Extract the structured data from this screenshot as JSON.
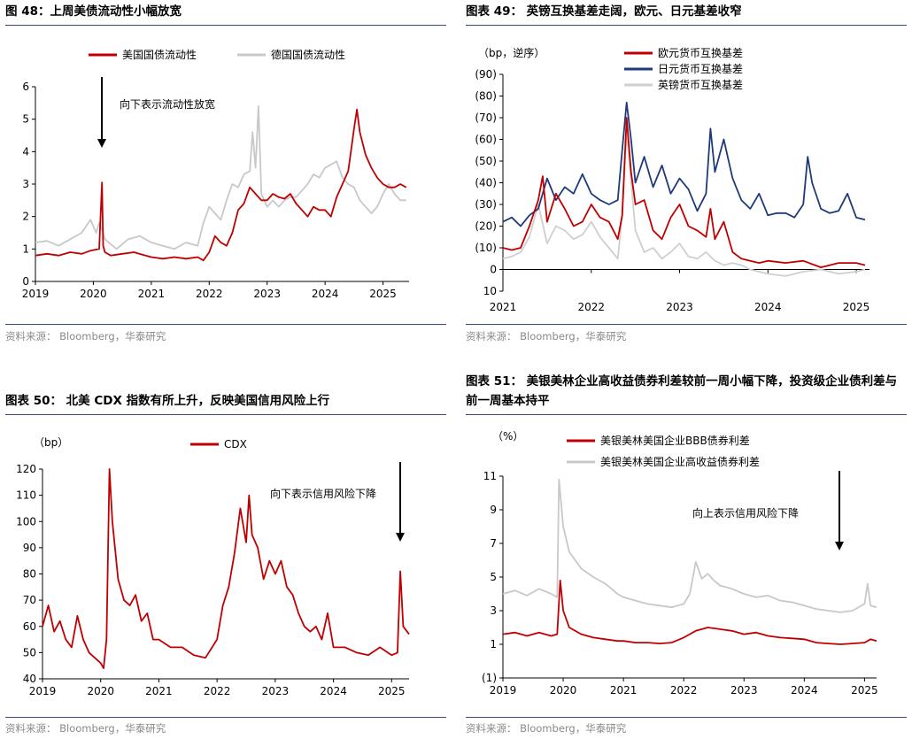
{
  "panels": [
    {
      "title": "图 48：上周美债流动性小幅放宽",
      "source": "资料来源：  Bloomberg，华泰研究",
      "chart_data": {
        "type": "line",
        "ylabel": "",
        "ylim": [
          0,
          6
        ],
        "yticks": [
          "0",
          "1",
          "2",
          "3",
          "4",
          "5",
          "6"
        ],
        "xlim": [
          2019,
          2025.45
        ],
        "xticks": [
          "2019",
          "2020",
          "2021",
          "2022",
          "2023",
          "2024",
          "2025"
        ],
        "legend_position": "top",
        "annotation": "向下表示流动性放宽",
        "series": [
          {
            "name": "美国国债流动性",
            "color": "#c00000",
            "x": [
              2019,
              2019.2,
              2019.4,
              2019.6,
              2019.8,
              2019.95,
              2020.1,
              2020.15,
              2020.17,
              2020.2,
              2020.3,
              2020.5,
              2020.7,
              2020.9,
              2021,
              2021.2,
              2021.4,
              2021.6,
              2021.8,
              2021.9,
              2022,
              2022.1,
              2022.2,
              2022.3,
              2022.4,
              2022.5,
              2022.6,
              2022.7,
              2022.8,
              2022.9,
              2023,
              2023.1,
              2023.2,
              2023.3,
              2023.4,
              2023.5,
              2023.6,
              2023.7,
              2023.8,
              2023.9,
              2024,
              2024.1,
              2024.2,
              2024.3,
              2024.4,
              2024.5,
              2024.55,
              2024.6,
              2024.7,
              2024.8,
              2024.9,
              2025,
              2025.1,
              2025.2,
              2025.3,
              2025.4
            ],
            "y": [
              0.8,
              0.85,
              0.8,
              0.9,
              0.85,
              0.95,
              1.0,
              3.05,
              1.1,
              0.9,
              0.8,
              0.85,
              0.9,
              0.8,
              0.75,
              0.7,
              0.75,
              0.7,
              0.75,
              0.65,
              0.9,
              1.4,
              1.2,
              1.1,
              1.5,
              2.2,
              2.4,
              2.9,
              2.7,
              2.5,
              2.5,
              2.7,
              2.6,
              2.55,
              2.7,
              2.4,
              2.2,
              2.0,
              2.3,
              2.2,
              2.2,
              2.0,
              2.6,
              3.0,
              3.4,
              4.7,
              5.3,
              4.6,
              3.9,
              3.5,
              3.2,
              3.0,
              2.9,
              2.9,
              3.0,
              2.9
            ]
          },
          {
            "name": "德国国债流动性",
            "color": "#c8c8c8",
            "x": [
              2019,
              2019.2,
              2019.4,
              2019.6,
              2019.8,
              2019.95,
              2020.05,
              2020.1,
              2020.15,
              2020.2,
              2020.4,
              2020.6,
              2020.8,
              2021,
              2021.2,
              2021.4,
              2021.6,
              2021.8,
              2021.9,
              2022,
              2022.1,
              2022.2,
              2022.3,
              2022.4,
              2022.5,
              2022.6,
              2022.7,
              2022.75,
              2022.8,
              2022.85,
              2022.9,
              2023,
              2023.1,
              2023.2,
              2023.3,
              2023.4,
              2023.5,
              2023.6,
              2023.7,
              2023.8,
              2023.9,
              2024,
              2024.1,
              2024.2,
              2024.3,
              2024.4,
              2024.5,
              2024.6,
              2024.7,
              2024.8,
              2024.9,
              2025,
              2025.1,
              2025.2,
              2025.3,
              2025.4
            ],
            "y": [
              1.2,
              1.25,
              1.1,
              1.3,
              1.5,
              1.9,
              1.5,
              1.8,
              1.6,
              1.3,
              1.0,
              1.3,
              1.4,
              1.2,
              1.1,
              1.0,
              1.2,
              1.1,
              1.8,
              2.3,
              2.1,
              1.9,
              2.5,
              3.0,
              2.9,
              3.3,
              3.4,
              4.6,
              3.5,
              5.4,
              2.7,
              2.3,
              2.5,
              2.3,
              2.5,
              2.6,
              2.6,
              2.8,
              3.0,
              3.3,
              3.2,
              3.5,
              3.6,
              3.7,
              3.2,
              3.0,
              2.9,
              2.5,
              2.3,
              2.1,
              2.3,
              2.7,
              3.0,
              2.7,
              2.5,
              2.5
            ]
          }
        ]
      }
    },
    {
      "title": "图表 49：  英镑互换基差走阔，欧元、日元基差收窄",
      "source": "资料来源：  Bloomberg，华泰研究",
      "chart_data": {
        "type": "line",
        "ylabel": "（bp，逆序）",
        "ylim": [
          -90,
          10
        ],
        "inverted_y": true,
        "yticks": [
          "(90)",
          "(80)",
          "(70)",
          "(60)",
          "(50)",
          "(40)",
          "(30)",
          "(20)",
          "(10)",
          "0",
          "10"
        ],
        "xlim": [
          2021,
          2025.15
        ],
        "xticks": [
          "2021",
          "2022",
          "2023",
          "2024",
          "2025"
        ],
        "legend_position": "top-right",
        "series": [
          {
            "name": "欧元货币互换基差",
            "color": "#c00000",
            "x": [
              2021,
              2021.1,
              2021.2,
              2021.3,
              2021.4,
              2021.45,
              2021.5,
              2021.6,
              2021.7,
              2021.8,
              2021.9,
              2022,
              2022.1,
              2022.2,
              2022.3,
              2022.35,
              2022.4,
              2022.45,
              2022.5,
              2022.6,
              2022.7,
              2022.8,
              2022.9,
              2023,
              2023.1,
              2023.2,
              2023.3,
              2023.35,
              2023.4,
              2023.5,
              2023.6,
              2023.7,
              2023.8,
              2023.9,
              2024,
              2024.2,
              2024.4,
              2024.6,
              2024.8,
              2025,
              2025.1
            ],
            "y": [
              -10,
              -9,
              -10,
              -20,
              -32,
              -43,
              -22,
              -35,
              -28,
              -20,
              -22,
              -30,
              -24,
              -22,
              -14,
              -25,
              -70,
              -45,
              -30,
              -32,
              -18,
              -14,
              -24,
              -30,
              -20,
              -18,
              -15,
              -28,
              -14,
              -22,
              -8,
              -5,
              -4,
              -3,
              -4,
              -3,
              -4,
              -1,
              -3,
              -3,
              -2
            ]
          },
          {
            "name": "日元货币互换基差",
            "color": "#1f3a7a",
            "x": [
              2021,
              2021.1,
              2021.2,
              2021.3,
              2021.4,
              2021.5,
              2021.6,
              2021.7,
              2021.8,
              2021.9,
              2022,
              2022.1,
              2022.2,
              2022.3,
              2022.35,
              2022.4,
              2022.45,
              2022.5,
              2022.6,
              2022.7,
              2022.8,
              2022.9,
              2023,
              2023.1,
              2023.2,
              2023.3,
              2023.35,
              2023.4,
              2023.5,
              2023.6,
              2023.7,
              2023.8,
              2023.9,
              2024,
              2024.1,
              2024.2,
              2024.3,
              2024.4,
              2024.45,
              2024.5,
              2024.6,
              2024.7,
              2024.8,
              2024.9,
              2025,
              2025.1
            ],
            "y": [
              -22,
              -24,
              -20,
              -25,
              -28,
              -42,
              -32,
              -38,
              -35,
              -44,
              -35,
              -32,
              -30,
              -32,
              -55,
              -77,
              -60,
              -40,
              -52,
              -38,
              -48,
              -35,
              -42,
              -37,
              -27,
              -35,
              -65,
              -45,
              -60,
              -42,
              -32,
              -28,
              -35,
              -25,
              -26,
              -26,
              -24,
              -30,
              -52,
              -40,
              -28,
              -26,
              -27,
              -35,
              -24,
              -23
            ]
          },
          {
            "name": "英镑货币互换基差",
            "color": "#cfcfcf",
            "x": [
              2021,
              2021.1,
              2021.2,
              2021.3,
              2021.4,
              2021.5,
              2021.6,
              2021.7,
              2021.8,
              2021.9,
              2022,
              2022.1,
              2022.2,
              2022.3,
              2022.35,
              2022.4,
              2022.5,
              2022.6,
              2022.7,
              2022.8,
              2022.9,
              2023,
              2023.1,
              2023.2,
              2023.3,
              2023.4,
              2023.5,
              2023.6,
              2023.7,
              2023.8,
              2023.9,
              2024,
              2024.2,
              2024.4,
              2024.6,
              2024.8,
              2025,
              2025.1
            ],
            "y": [
              -5,
              -6,
              -8,
              -15,
              -30,
              -12,
              -20,
              -18,
              -14,
              -16,
              -22,
              -15,
              -10,
              -5,
              -25,
              -64,
              -18,
              -8,
              -10,
              -5,
              -8,
              -12,
              -6,
              -5,
              -8,
              -4,
              -2,
              -3,
              -2,
              0,
              1,
              2,
              3,
              1,
              0,
              2,
              1,
              0
            ]
          }
        ]
      }
    },
    {
      "title": "图表 50：  北美 CDX 指数有所上升，反映美国信用风险上行",
      "source": "资料来源：  Bloomberg，华泰研究",
      "chart_data": {
        "type": "line",
        "ylabel": "（bp）",
        "ylim": [
          40,
          120
        ],
        "yticks": [
          "40",
          "50",
          "60",
          "70",
          "80",
          "90",
          "100",
          "110",
          "120"
        ],
        "xlim": [
          2019,
          2025.3
        ],
        "xticks": [
          "2019",
          "2020",
          "2021",
          "2022",
          "2023",
          "2024",
          "2025"
        ],
        "legend_position": "top",
        "annotation": "向下表示信用风险下降",
        "series": [
          {
            "name": "CDX",
            "color": "#c00000",
            "x": [
              2019,
              2019.1,
              2019.2,
              2019.3,
              2019.4,
              2019.5,
              2019.6,
              2019.7,
              2019.8,
              2019.9,
              2020,
              2020.05,
              2020.1,
              2020.15,
              2020.2,
              2020.3,
              2020.4,
              2020.5,
              2020.6,
              2020.7,
              2020.8,
              2020.9,
              2021,
              2021.2,
              2021.4,
              2021.6,
              2021.8,
              2022,
              2022.1,
              2022.2,
              2022.3,
              2022.4,
              2022.5,
              2022.55,
              2022.6,
              2022.7,
              2022.8,
              2022.9,
              2023,
              2023.1,
              2023.2,
              2023.3,
              2023.4,
              2023.5,
              2023.6,
              2023.7,
              2023.8,
              2023.9,
              2024,
              2024.2,
              2024.4,
              2024.6,
              2024.8,
              2025,
              2025.1,
              2025.15,
              2025.2,
              2025.3
            ],
            "y": [
              60,
              68,
              58,
              62,
              55,
              52,
              64,
              55,
              50,
              48,
              46,
              44,
              55,
              120,
              100,
              78,
              70,
              68,
              72,
              62,
              65,
              55,
              55,
              52,
              52,
              49,
              48,
              55,
              68,
              75,
              88,
              105,
              92,
              110,
              95,
              90,
              78,
              85,
              80,
              85,
              75,
              72,
              65,
              60,
              58,
              60,
              55,
              65,
              52,
              52,
              50,
              49,
              52,
              49,
              50,
              81,
              60,
              57
            ]
          }
        ]
      }
    },
    {
      "title": "图表 51：  美银美林企业高收益债券利差较前一周小幅下降，投资级企业债利差与前一周基本持平",
      "source": "资料来源：  Bloomberg，华泰研究",
      "chart_data": {
        "type": "line",
        "ylabel": "（%）",
        "ylim": [
          -1,
          11
        ],
        "yticks": [
          "(1)",
          "1",
          "3",
          "5",
          "7",
          "9",
          "11"
        ],
        "xlim": [
          2019,
          2025.2
        ],
        "xticks": [
          "2019",
          "2020",
          "2021",
          "2022",
          "2023",
          "2024",
          "2025"
        ],
        "legend_position": "top",
        "annotation": "向上表示信用风险下降",
        "series": [
          {
            "name": "美银美林美国企业BBB债券利差",
            "color": "#c00000",
            "x": [
              2019,
              2019.2,
              2019.4,
              2019.6,
              2019.8,
              2019.9,
              2019.95,
              2020,
              2020.1,
              2020.3,
              2020.5,
              2020.7,
              2020.9,
              2021,
              2021.2,
              2021.4,
              2021.6,
              2021.8,
              2022,
              2022.2,
              2022.4,
              2022.6,
              2022.8,
              2023,
              2023.2,
              2023.4,
              2023.6,
              2023.8,
              2024,
              2024.2,
              2024.4,
              2024.6,
              2024.8,
              2025,
              2025.1,
              2025.2
            ],
            "y": [
              1.6,
              1.7,
              1.5,
              1.7,
              1.5,
              1.6,
              4.8,
              3.0,
              2.0,
              1.6,
              1.4,
              1.3,
              1.2,
              1.2,
              1.1,
              1.1,
              1.05,
              1.1,
              1.4,
              1.8,
              2.0,
              1.9,
              1.8,
              1.6,
              1.7,
              1.5,
              1.4,
              1.35,
              1.3,
              1.1,
              1.05,
              1.0,
              1.05,
              1.1,
              1.3,
              1.2
            ]
          },
          {
            "name": "美银美林美国企业高收益债券利差",
            "color": "#c8c8c8",
            "x": [
              2019,
              2019.2,
              2019.4,
              2019.6,
              2019.8,
              2019.9,
              2019.93,
              2020,
              2020.1,
              2020.3,
              2020.5,
              2020.7,
              2020.9,
              2021,
              2021.2,
              2021.4,
              2021.6,
              2021.8,
              2022,
              2022.1,
              2022.2,
              2022.3,
              2022.4,
              2022.5,
              2022.6,
              2022.8,
              2023,
              2023.2,
              2023.4,
              2023.6,
              2023.8,
              2024,
              2024.2,
              2024.4,
              2024.6,
              2024.8,
              2025,
              2025.05,
              2025.1,
              2025.2
            ],
            "y": [
              4.0,
              4.2,
              3.9,
              4.3,
              4.0,
              3.8,
              10.8,
              8.0,
              6.5,
              5.5,
              5.0,
              4.6,
              4.0,
              3.8,
              3.6,
              3.4,
              3.3,
              3.2,
              3.4,
              4.0,
              5.9,
              4.9,
              5.2,
              4.8,
              4.5,
              4.3,
              4.0,
              3.8,
              3.9,
              3.6,
              3.5,
              3.3,
              3.1,
              3.0,
              2.9,
              3.0,
              3.4,
              4.6,
              3.3,
              3.2
            ]
          }
        ]
      }
    }
  ]
}
